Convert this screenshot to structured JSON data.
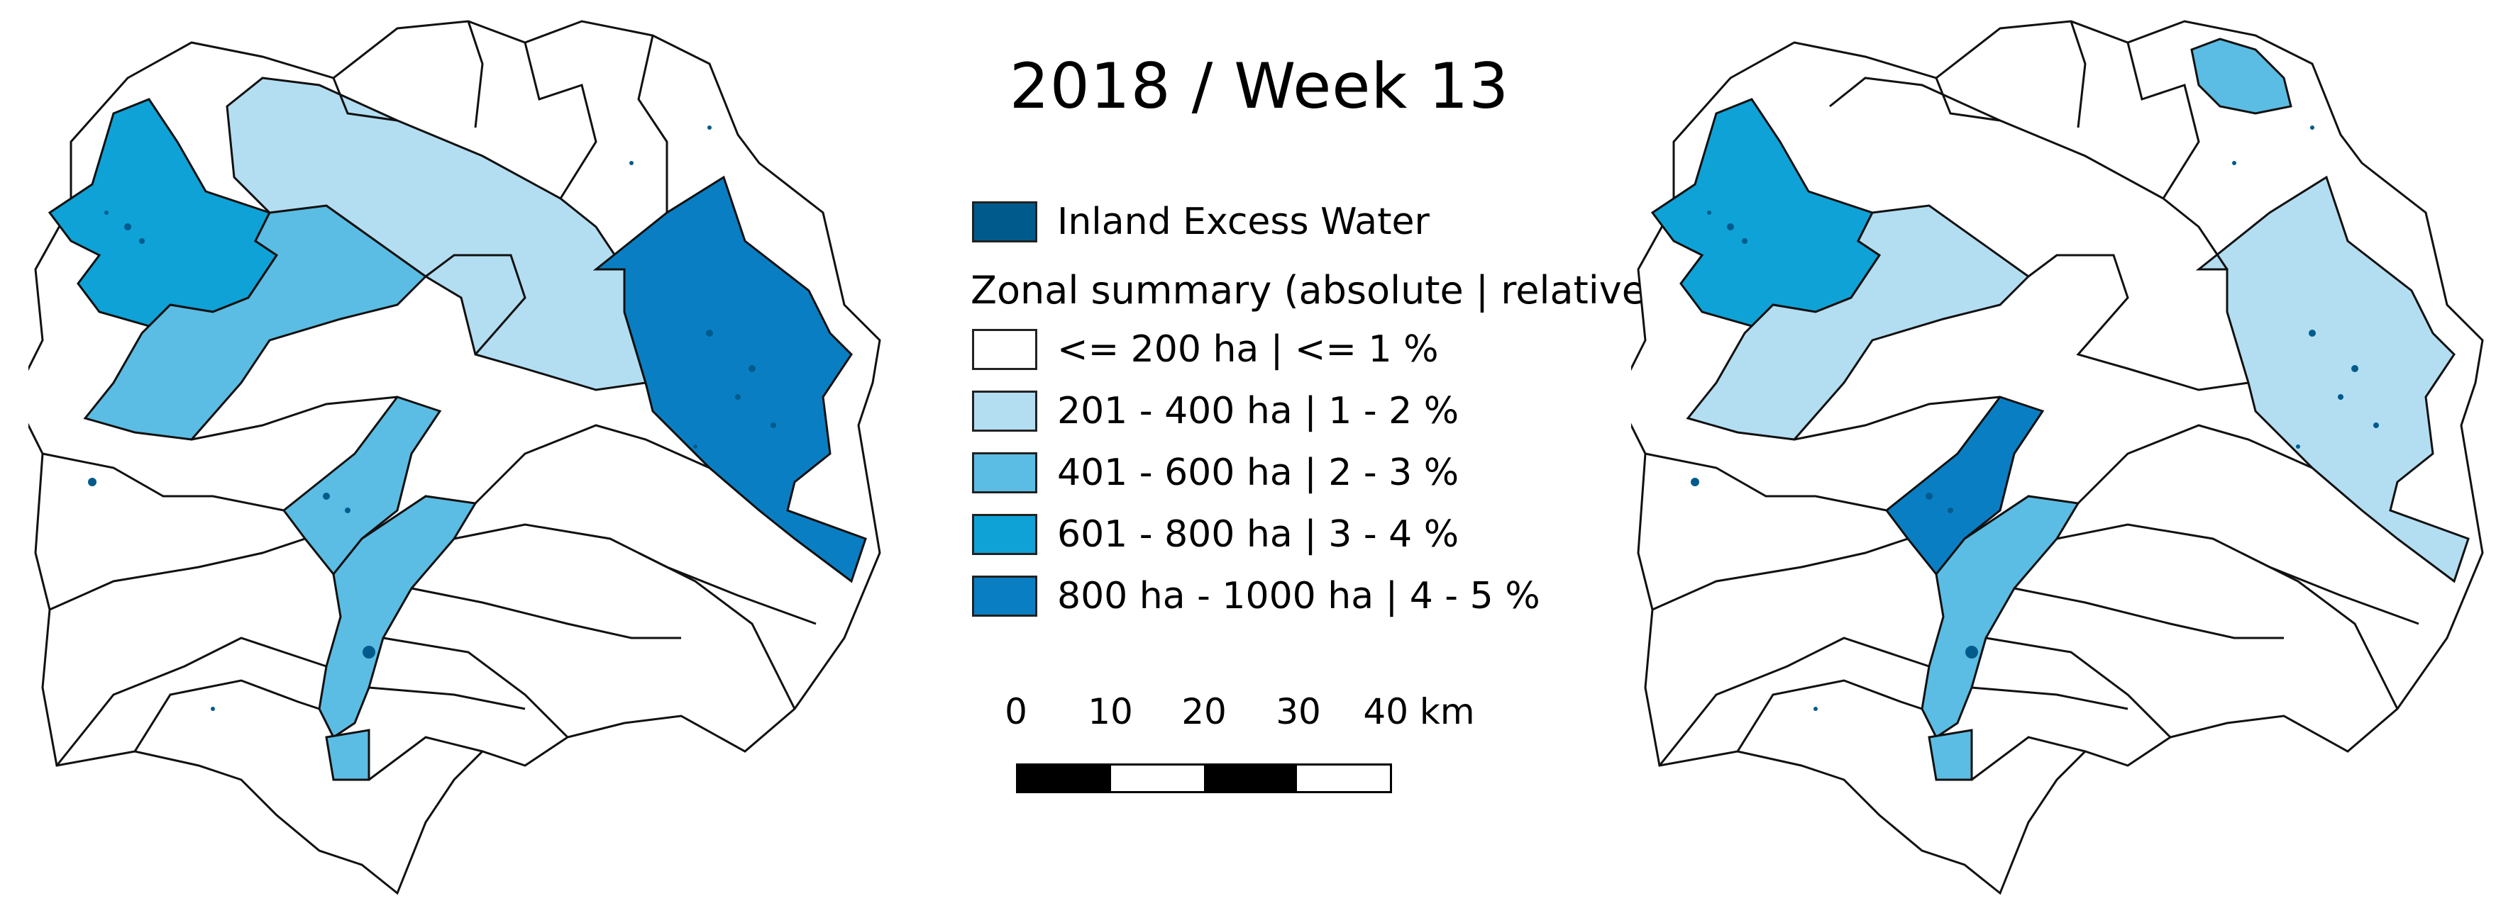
{
  "title": "2018 / Week 13",
  "colors": {
    "excess_water": "#005b8c",
    "class_0": "#ffffff",
    "class_1": "#b3def2",
    "class_2": "#5bbde3",
    "class_3": "#0fa2d6",
    "class_4": "#0a7ec3",
    "boundary": "#111111"
  },
  "legend": {
    "excess_water_label": "Inland Excess Water",
    "heading": "Zonal summary (absolute | relative)",
    "classes": [
      {
        "label": "<= 200 ha | <= 1 %"
      },
      {
        "label": "201 - 400 ha | 1 - 2 %"
      },
      {
        "label": "401 - 600 ha | 2 - 3 %"
      },
      {
        "label": "601 - 800 ha | 3 - 4 %"
      },
      {
        "label": "800 ha - 1000 ha | 4 - 5 %"
      }
    ]
  },
  "scale_bar": {
    "ticks": [
      "0",
      "10",
      "20",
      "30",
      "40 km"
    ],
    "segments": [
      "black",
      "white",
      "black",
      "white"
    ]
  },
  "maps": {
    "left": {
      "mode": "absolute"
    },
    "right": {
      "mode": "relative"
    }
  }
}
